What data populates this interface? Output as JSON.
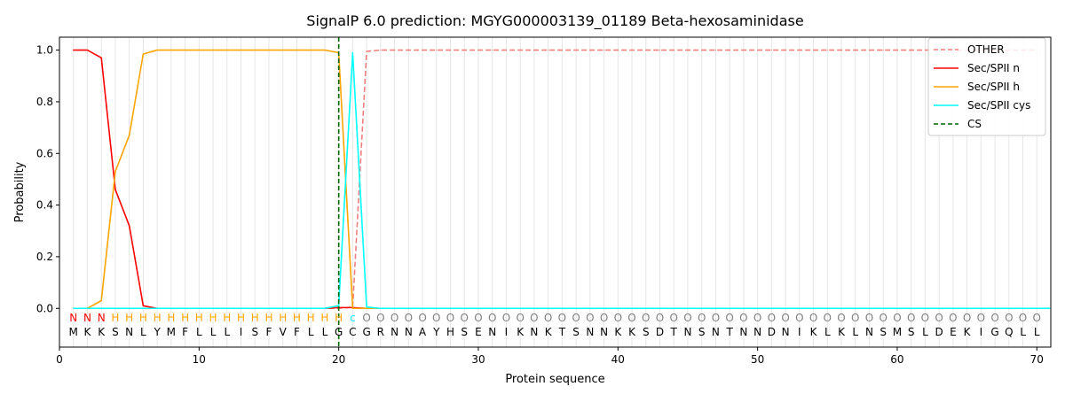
{
  "chart_data": {
    "type": "line",
    "title": "SignalP 6.0 prediction: MGYG000003139_01189 Beta-hexosaminidase",
    "xlabel": "Protein sequence",
    "ylabel": "Probability",
    "xlim": [
      0,
      71
    ],
    "ylim": [
      -0.15,
      1.05
    ],
    "xticks": [
      0,
      10,
      20,
      30,
      40,
      50,
      60,
      70
    ],
    "yticks": [
      0.0,
      0.2,
      0.4,
      0.6,
      0.8,
      1.0
    ],
    "ytick_labels": [
      "0.0",
      "0.2",
      "0.4",
      "0.6",
      "0.8",
      "1.0"
    ],
    "grid": "vertical lines at every residue",
    "legend_position": "top-right",
    "sequence": [
      "M",
      "K",
      "K",
      "S",
      "N",
      "L",
      "Y",
      "M",
      "F",
      "L",
      "L",
      "L",
      "I",
      "S",
      "F",
      "V",
      "F",
      "L",
      "L",
      "G",
      "C",
      "G",
      "R",
      "N",
      "N",
      "A",
      "Y",
      "H",
      "S",
      "E",
      "N",
      "I",
      "K",
      "N",
      "K",
      "T",
      "S",
      "N",
      "N",
      "K",
      "K",
      "S",
      "D",
      "T",
      "N",
      "S",
      "N",
      "T",
      "N",
      "N",
      "D",
      "N",
      "I",
      "K",
      "L",
      "K",
      "L",
      "N",
      "S",
      "M",
      "S",
      "L",
      "D",
      "E",
      "K",
      "I",
      "G",
      "Q",
      "L",
      "L"
    ],
    "region_labels": [
      "N",
      "N",
      "N",
      "H",
      "H",
      "H",
      "H",
      "H",
      "H",
      "H",
      "H",
      "H",
      "H",
      "H",
      "H",
      "H",
      "H",
      "H",
      "H",
      "H",
      "c",
      "O",
      "O",
      "O",
      "O",
      "O",
      "O",
      "O",
      "O",
      "O",
      "O",
      "O",
      "O",
      "O",
      "O",
      "O",
      "O",
      "O",
      "O",
      "O",
      "O",
      "O",
      "O",
      "O",
      "O",
      "O",
      "O",
      "O",
      "O",
      "O",
      "O",
      "O",
      "O",
      "O",
      "O",
      "O",
      "O",
      "O",
      "O",
      "O",
      "O",
      "O",
      "O",
      "O",
      "O",
      "O",
      "O",
      "O",
      "O",
      "O"
    ],
    "region_colors": {
      "N": "#ff0000",
      "H": "#ffa500",
      "c": "#00ffff",
      "O": "#808080"
    },
    "series": [
      {
        "name": "OTHER",
        "color": "#f08080",
        "dash": "dashed",
        "values": [
          0,
          0,
          0,
          0,
          0,
          0,
          0,
          0,
          0,
          0,
          0,
          0,
          0,
          0,
          0,
          0,
          0,
          0,
          0,
          0,
          0.005,
          0.995,
          1,
          1,
          1,
          1,
          1,
          1,
          1,
          1,
          1,
          1,
          1,
          1,
          1,
          1,
          1,
          1,
          1,
          1,
          1,
          1,
          1,
          1,
          1,
          1,
          1,
          1,
          1,
          1,
          1,
          1,
          1,
          1,
          1,
          1,
          1,
          1,
          1,
          1,
          1,
          1,
          1,
          1,
          1,
          1,
          1,
          1,
          1,
          1
        ]
      },
      {
        "name": "Sec/SPII n",
        "color": "#ff0000",
        "dash": "solid",
        "values": [
          1.0,
          1.0,
          0.97,
          0.46,
          0.32,
          0.01,
          0,
          0,
          0,
          0,
          0,
          0,
          0,
          0,
          0,
          0,
          0,
          0,
          0,
          0.003,
          0.003,
          0,
          0,
          0,
          0,
          0,
          0,
          0,
          0,
          0,
          0,
          0,
          0,
          0,
          0,
          0,
          0,
          0,
          0,
          0,
          0,
          0,
          0,
          0,
          0,
          0,
          0,
          0,
          0,
          0,
          0,
          0,
          0,
          0,
          0,
          0,
          0,
          0,
          0,
          0,
          0,
          0,
          0,
          0,
          0,
          0,
          0,
          0,
          0,
          0
        ]
      },
      {
        "name": "Sec/SPII h",
        "color": "#ffa500",
        "dash": "solid",
        "values": [
          0,
          0,
          0.03,
          0.53,
          0.67,
          0.985,
          1,
          1,
          1,
          1,
          1,
          1,
          1,
          1,
          1,
          1,
          1,
          1,
          1,
          0.99,
          0,
          0,
          0,
          0,
          0,
          0,
          0,
          0,
          0,
          0,
          0,
          0,
          0,
          0,
          0,
          0,
          0,
          0,
          0,
          0,
          0,
          0,
          0,
          0,
          0,
          0,
          0,
          0,
          0,
          0,
          0,
          0,
          0,
          0,
          0,
          0,
          0,
          0,
          0,
          0,
          0,
          0,
          0,
          0,
          0,
          0,
          0,
          0,
          0,
          0
        ]
      },
      {
        "name": "Sec/SPII cys",
        "color": "#00ffff",
        "dash": "solid",
        "values": [
          0,
          0,
          0,
          0,
          0,
          0,
          0,
          0,
          0,
          0,
          0,
          0,
          0,
          0,
          0,
          0,
          0,
          0,
          0,
          0.01,
          0.99,
          0.005,
          0,
          0,
          0,
          0,
          0,
          0,
          0,
          0,
          0,
          0,
          0,
          0,
          0,
          0,
          0,
          0,
          0,
          0,
          0,
          0,
          0,
          0,
          0,
          0,
          0,
          0,
          0,
          0,
          0,
          0,
          0,
          0,
          0,
          0,
          0,
          0,
          0,
          0,
          0,
          0,
          0,
          0,
          0,
          0,
          0,
          0,
          0,
          0,
          0
        ]
      }
    ],
    "cs_marker": {
      "name": "CS",
      "x": 20,
      "color": "#006400",
      "dash": "dashed"
    }
  }
}
